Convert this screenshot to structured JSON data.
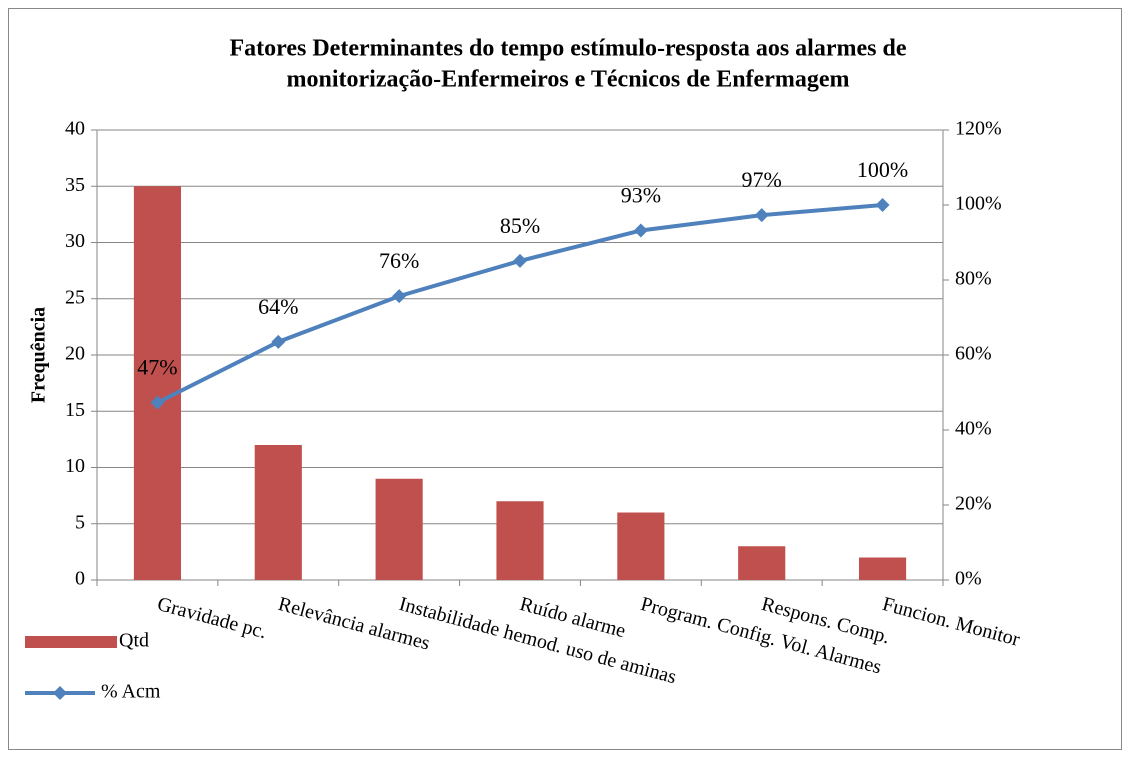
{
  "chart_data": {
    "type": "bar",
    "title": [
      "Fatores Determinantes do tempo estímulo-resposta aos alarmes de",
      "monitorização-Enfermeiros e Técnicos de Enfermagem"
    ],
    "y_label": "Frequência",
    "categories": [
      "Gravidade pc.",
      "Relevância alarmes",
      "Instabilidade hemod. uso de aminas",
      "Ruído alarme",
      "Program. Config. Vol. Alarmes",
      "Respons. Comp.",
      "Funcion. Monitor"
    ],
    "series": [
      {
        "name": "Qtd",
        "type": "bar",
        "color": "#c0504d",
        "values": [
          35,
          12,
          9,
          7,
          6,
          3,
          2
        ]
      },
      {
        "name": "% Acm",
        "type": "line",
        "axis": "y2",
        "color": "#4f81bd",
        "values": [
          47.3,
          63.5,
          75.7,
          85.1,
          93.2,
          97.3,
          100
        ],
        "value_labels": [
          "47%",
          "64%",
          "76%",
          "85%",
          "93%",
          "97%",
          "100%"
        ]
      }
    ],
    "ylim": [
      0,
      40
    ],
    "yticks": [
      0,
      5,
      10,
      15,
      20,
      25,
      30,
      35,
      40
    ],
    "y2lim": [
      0,
      120
    ],
    "y2ticks": [
      {
        "value": 0,
        "label": "0%"
      },
      {
        "value": 20,
        "label": "20%"
      },
      {
        "value": 40,
        "label": "40%"
      },
      {
        "value": 60,
        "label": "60%"
      },
      {
        "value": 80,
        "label": "80%"
      },
      {
        "value": 100,
        "label": "100%"
      },
      {
        "value": 120,
        "label": "120%"
      }
    ],
    "grid": true,
    "legend": "left"
  }
}
